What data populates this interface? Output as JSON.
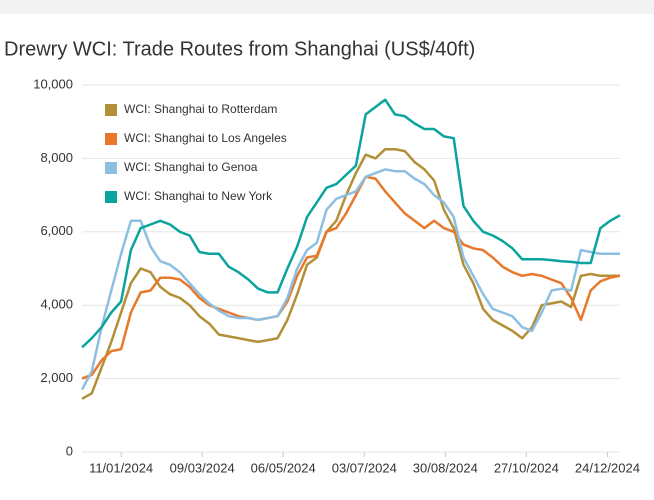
{
  "chart_data": {
    "type": "line",
    "title": "Drewry WCI: Trade Routes from Shanghai (US$/40ft)",
    "x": [
      "14/12/2023",
      "21/12/2023",
      "28/12/2023",
      "04/01/2024",
      "11/01/2024",
      "18/01/2024",
      "25/01/2024",
      "01/02/2024",
      "08/02/2024",
      "15/02/2024",
      "22/02/2024",
      "29/02/2024",
      "07/03/2024",
      "14/03/2024",
      "21/03/2024",
      "28/03/2024",
      "04/04/2024",
      "11/04/2024",
      "18/04/2024",
      "25/04/2024",
      "02/05/2024",
      "09/05/2024",
      "16/05/2024",
      "23/05/2024",
      "30/05/2024",
      "06/06/2024",
      "13/06/2024",
      "20/06/2024",
      "27/06/2024",
      "04/07/2024",
      "11/07/2024",
      "18/07/2024",
      "25/07/2024",
      "01/08/2024",
      "08/08/2024",
      "15/08/2024",
      "22/08/2024",
      "29/08/2024",
      "05/09/2024",
      "12/09/2024",
      "19/09/2024",
      "26/09/2024",
      "03/10/2024",
      "10/10/2024",
      "17/10/2024",
      "24/10/2024",
      "31/10/2024",
      "07/11/2024",
      "14/11/2024",
      "21/11/2024",
      "28/11/2024",
      "05/12/2024",
      "12/12/2024",
      "19/12/2024",
      "26/12/2024",
      "02/01/2025"
    ],
    "xlim": [
      "14/12/2023",
      "02/01/2025"
    ],
    "xticks": [
      "11/01/2024",
      "09/03/2024",
      "06/05/2024",
      "03/07/2024",
      "30/08/2024",
      "27/10/2024",
      "24/12/2024"
    ],
    "ylim": [
      0,
      10000
    ],
    "yticks": [
      0,
      {
        "value": 2000,
        "label": "2,000"
      },
      {
        "value": 4000,
        "label": "4,000"
      },
      {
        "value": 6000,
        "label": "6,000"
      },
      {
        "value": 8000,
        "label": "8,000"
      },
      {
        "value": 10000,
        "label": "10,000"
      }
    ],
    "grid": true,
    "legend": "top-left",
    "series": [
      {
        "name": "WCI: Shanghai to Rotterdam",
        "color": "#b38f35",
        "values": [
          1450,
          1600,
          2300,
          3000,
          3800,
          4600,
          5000,
          4900,
          4500,
          4300,
          4200,
          4000,
          3700,
          3500,
          3200,
          3150,
          3100,
          3050,
          3000,
          3050,
          3100,
          3600,
          4300,
          5100,
          5300,
          6000,
          6300,
          7000,
          7600,
          8100,
          8000,
          8250,
          8250,
          8200,
          7900,
          7700,
          7400,
          6600,
          6100,
          5100,
          4600,
          3900,
          3600,
          3450,
          3300,
          3100,
          3400,
          4000,
          4050,
          4100,
          3950,
          4800,
          4850,
          4800,
          4800,
          4800
        ]
      },
      {
        "name": "WCI: Shanghai to Los Angeles",
        "color": "#e8782c",
        "values": [
          2000,
          2100,
          2500,
          2750,
          2800,
          3800,
          4350,
          4400,
          4750,
          4750,
          4700,
          4500,
          4200,
          4000,
          3900,
          3800,
          3700,
          3650,
          3600,
          3650,
          3700,
          4100,
          4800,
          5300,
          5350,
          6000,
          6100,
          6500,
          7000,
          7500,
          7450,
          7100,
          6800,
          6500,
          6300,
          6100,
          6300,
          6100,
          6000,
          5650,
          5550,
          5500,
          5300,
          5050,
          4900,
          4800,
          4850,
          4800,
          4700,
          4600,
          4200,
          3600,
          4400,
          4650,
          4750,
          4800
        ]
      },
      {
        "name": "WCI: Shanghai to Genoa",
        "color": "#8dbfe2",
        "values": [
          1700,
          2200,
          3400,
          4400,
          5400,
          6300,
          6300,
          5600,
          5200,
          5100,
          4900,
          4600,
          4300,
          4050,
          3850,
          3700,
          3650,
          3650,
          3600,
          3650,
          3700,
          4200,
          5000,
          5500,
          5700,
          6600,
          6900,
          7000,
          7100,
          7500,
          7600,
          7700,
          7650,
          7650,
          7450,
          7300,
          7000,
          6800,
          6400,
          5300,
          4800,
          4300,
          3900,
          3800,
          3700,
          3400,
          3300,
          3800,
          4400,
          4450,
          4400,
          5500,
          5450,
          5400,
          5400,
          5400
        ]
      },
      {
        "name": "WCI: Shanghai to New York",
        "color": "#0aa39e",
        "values": [
          2850,
          3100,
          3400,
          3800,
          4100,
          5500,
          6100,
          6200,
          6300,
          6200,
          6000,
          5900,
          5450,
          5400,
          5400,
          5050,
          4900,
          4700,
          4450,
          4350,
          4350,
          5000,
          5600,
          6400,
          6800,
          7200,
          7300,
          7550,
          7800,
          9200,
          9400,
          9600,
          9200,
          9150,
          8950,
          8800,
          8800,
          8600,
          8550,
          6700,
          6300,
          6000,
          5900,
          5750,
          5550,
          5250,
          5250,
          5250,
          5230,
          5200,
          5180,
          5150,
          5150,
          6100,
          6300,
          6450
        ]
      }
    ]
  }
}
